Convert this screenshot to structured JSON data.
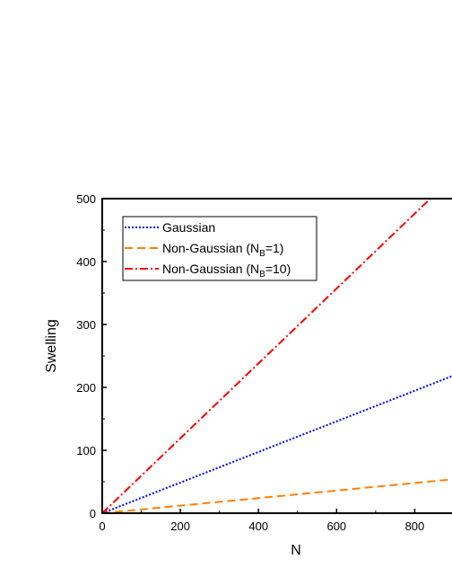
{
  "chart_data": {
    "type": "line",
    "title": "",
    "xlabel": "N",
    "ylabel": "Swelling",
    "xlim": [
      0,
      900
    ],
    "ylim": [
      0,
      500
    ],
    "xticks": [
      0,
      200,
      400,
      600,
      800
    ],
    "yticks": [
      0,
      100,
      200,
      300,
      400,
      500
    ],
    "grid": false,
    "legend_position": "top-left",
    "series": [
      {
        "name": "Gaussian",
        "name_main": "Gaussian",
        "name_sub": "",
        "name_tail": "",
        "color": "#0000ff",
        "style": "dotted",
        "x": [
          0,
          900
        ],
        "y": [
          0,
          219
        ]
      },
      {
        "name": "Non-Gaussian (NB=1)",
        "name_main": "Non-Gaussian (N",
        "name_sub": "B",
        "name_tail": "=1)",
        "color": "#ff8000",
        "style": "dashed",
        "x": [
          0,
          900
        ],
        "y": [
          0,
          54
        ]
      },
      {
        "name": "Non-Gaussian (NB=10)",
        "name_main": "Non-Gaussian (N",
        "name_sub": "B",
        "name_tail": "=10)",
        "color": "#ff0000",
        "style": "dashdot",
        "x": [
          0,
          840
        ],
        "y": [
          0,
          500
        ]
      }
    ]
  }
}
